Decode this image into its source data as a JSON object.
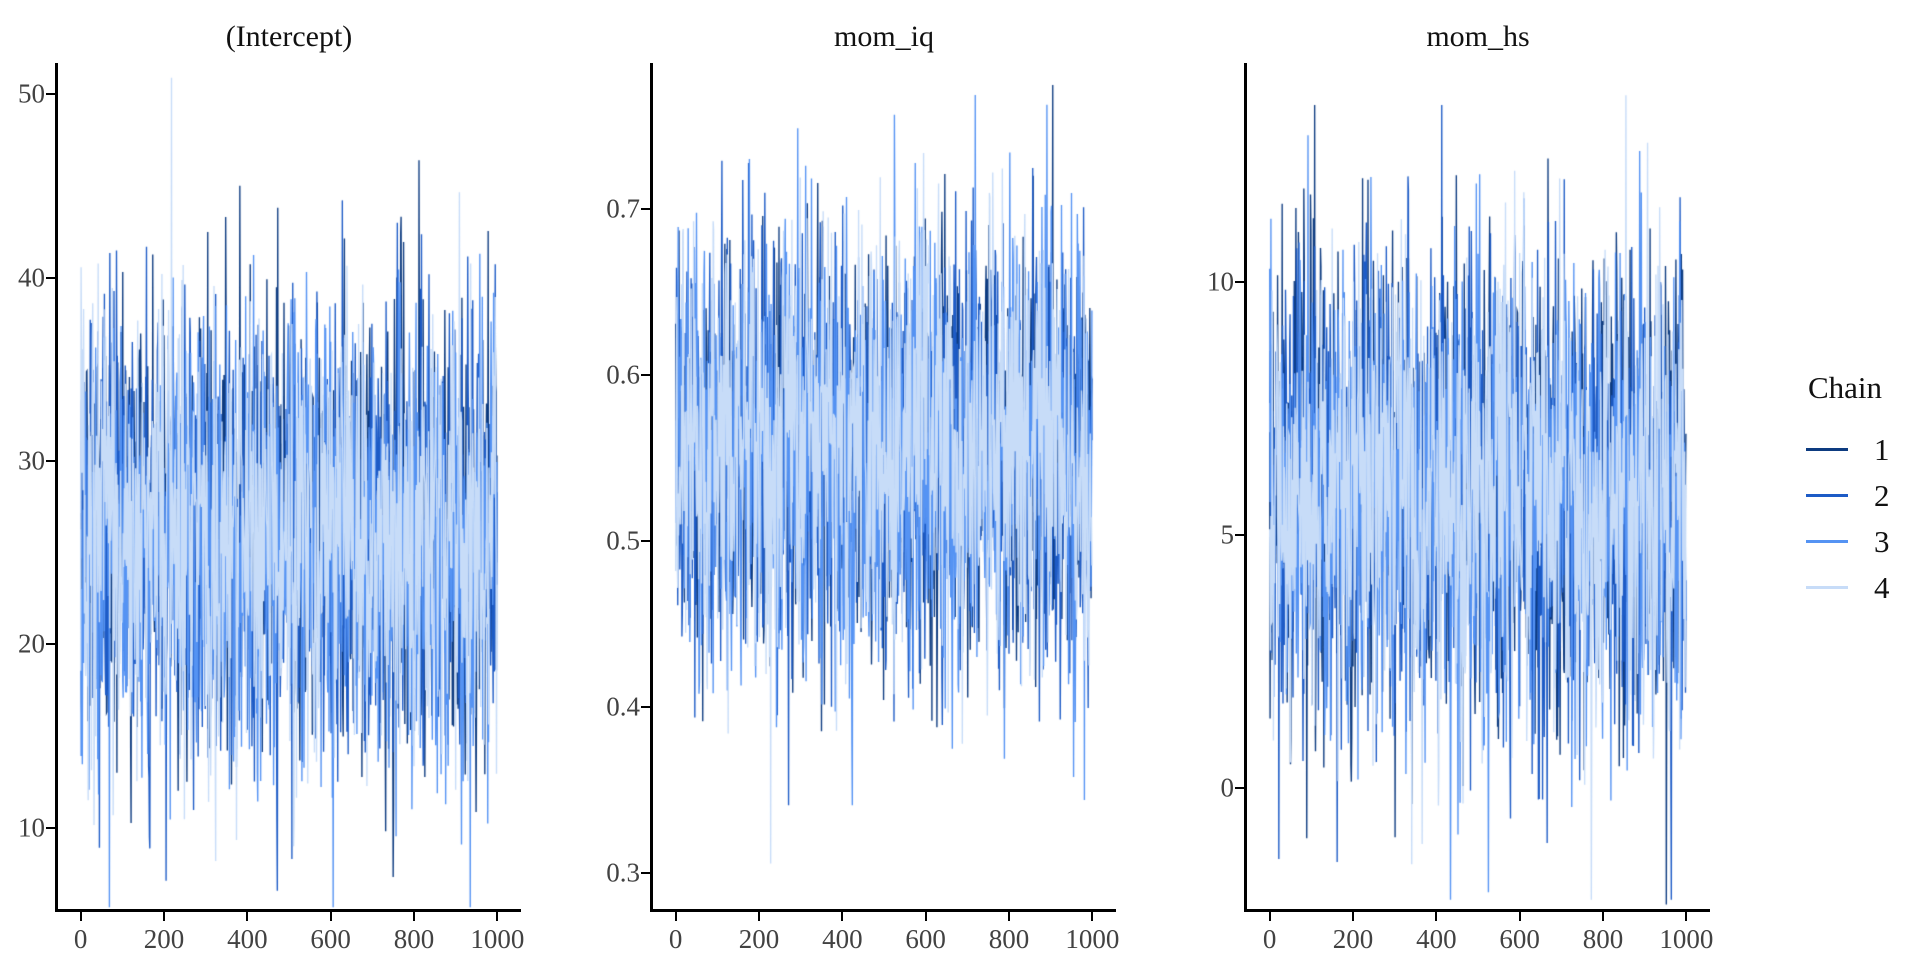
{
  "legend": {
    "title": "Chain",
    "items": [
      {
        "label": "1",
        "color": "#0d3b80"
      },
      {
        "label": "2",
        "color": "#1d5bc6"
      },
      {
        "label": "3",
        "color": "#5593f3"
      },
      {
        "label": "4",
        "color": "#c7dcf8"
      }
    ]
  },
  "chart_data": [
    {
      "type": "line",
      "subtype": "mcmc_trace",
      "title": "(Intercept)",
      "xlabel": "",
      "ylabel": "",
      "x_ticks": [
        {
          "label": "0",
          "value": 0
        },
        {
          "label": "200",
          "value": 200
        },
        {
          "label": "400",
          "value": 400
        },
        {
          "label": "600",
          "value": 600
        },
        {
          "label": "800",
          "value": 800
        },
        {
          "label": "1000",
          "value": 1000
        }
      ],
      "y_ticks": [
        {
          "label": "10",
          "value": 10
        },
        {
          "label": "20",
          "value": 20
        },
        {
          "label": "30",
          "value": 30
        },
        {
          "label": "40",
          "value": 40
        },
        {
          "label": "50",
          "value": 50
        }
      ],
      "xlim": [
        -52,
        1052
      ],
      "ylim": [
        5.5,
        51.6
      ],
      "iterations": 1000,
      "n_chains": 4,
      "grid": false,
      "legend_position": "right",
      "observed_range": [
        7.3,
        50.9
      ],
      "series": [
        {
          "name": "chain 1",
          "color": "#0d3b80",
          "mean": 26.0,
          "sd": 5.9
        },
        {
          "name": "chain 2",
          "color": "#1d5bc6",
          "mean": 26.0,
          "sd": 5.9
        },
        {
          "name": "chain 3",
          "color": "#5593f3",
          "mean": 26.0,
          "sd": 5.9
        },
        {
          "name": "chain 4",
          "color": "#c7dcf8",
          "mean": 26.0,
          "sd": 5.9
        }
      ],
      "extremes": [
        {
          "chain": 4,
          "iteration": 218,
          "value": 50.9
        },
        {
          "chain": 1,
          "iteration": 812,
          "value": 46.4
        },
        {
          "chain": 2,
          "iteration": 760,
          "value": 43.0
        },
        {
          "chain": 1,
          "iteration": 750,
          "value": 7.3
        },
        {
          "chain": 2,
          "iteration": 45,
          "value": 8.9
        },
        {
          "chain": 3,
          "iteration": 958,
          "value": 41.3
        }
      ]
    },
    {
      "type": "line",
      "subtype": "mcmc_trace",
      "title": "mom_iq",
      "xlabel": "",
      "ylabel": "",
      "x_ticks": [
        {
          "label": "0",
          "value": 0
        },
        {
          "label": "200",
          "value": 200
        },
        {
          "label": "400",
          "value": 400
        },
        {
          "label": "600",
          "value": 600
        },
        {
          "label": "800",
          "value": 800
        },
        {
          "label": "1000",
          "value": 1000
        }
      ],
      "y_ticks": [
        {
          "label": "0.3",
          "value": 0.3
        },
        {
          "label": "0.4",
          "value": 0.4
        },
        {
          "label": "0.5",
          "value": 0.5
        },
        {
          "label": "0.6",
          "value": 0.6
        },
        {
          "label": "0.7",
          "value": 0.7
        }
      ],
      "xlim": [
        -52,
        1052
      ],
      "ylim": [
        0.278,
        0.787
      ],
      "iterations": 1000,
      "n_chains": 4,
      "grid": false,
      "legend_position": "right",
      "observed_range": [
        0.306,
        0.775
      ],
      "series": [
        {
          "name": "chain 1",
          "color": "#0d3b80",
          "mean": 0.555,
          "sd": 0.062
        },
        {
          "name": "chain 2",
          "color": "#1d5bc6",
          "mean": 0.555,
          "sd": 0.062
        },
        {
          "name": "chain 3",
          "color": "#5593f3",
          "mean": 0.555,
          "sd": 0.062
        },
        {
          "name": "chain 4",
          "color": "#c7dcf8",
          "mean": 0.555,
          "sd": 0.062
        }
      ],
      "extremes": [
        {
          "chain": 1,
          "iteration": 905,
          "value": 0.775
        },
        {
          "chain": 2,
          "iteration": 175,
          "value": 0.728
        },
        {
          "chain": 4,
          "iteration": 228,
          "value": 0.306
        },
        {
          "chain": 3,
          "iteration": 525,
          "value": 0.757
        },
        {
          "chain": 1,
          "iteration": 615,
          "value": 0.392
        }
      ]
    },
    {
      "type": "line",
      "subtype": "mcmc_trace",
      "title": "mom_hs",
      "xlabel": "",
      "ylabel": "",
      "x_ticks": [
        {
          "label": "0",
          "value": 0
        },
        {
          "label": "200",
          "value": 200
        },
        {
          "label": "400",
          "value": 400
        },
        {
          "label": "600",
          "value": 600
        },
        {
          "label": "800",
          "value": 800
        },
        {
          "label": "1000",
          "value": 1000
        }
      ],
      "y_ticks": [
        {
          "label": "0",
          "value": 0
        },
        {
          "label": "5",
          "value": 5
        },
        {
          "label": "10",
          "value": 10
        }
      ],
      "xlim": [
        -52,
        1052
      ],
      "ylim": [
        -2.41,
        14.29
      ],
      "iterations": 1000,
      "n_chains": 4,
      "grid": false,
      "legend_position": "right",
      "observed_range": [
        -2.3,
        13.5
      ],
      "series": [
        {
          "name": "chain 1",
          "color": "#0d3b80",
          "mean": 5.9,
          "sd": 2.35
        },
        {
          "name": "chain 2",
          "color": "#1d5bc6",
          "mean": 5.9,
          "sd": 2.35
        },
        {
          "name": "chain 3",
          "color": "#5593f3",
          "mean": 5.9,
          "sd": 2.35
        },
        {
          "name": "chain 4",
          "color": "#c7dcf8",
          "mean": 5.9,
          "sd": 2.35
        }
      ],
      "extremes": [
        {
          "chain": 1,
          "iteration": 108,
          "value": 13.5
        },
        {
          "chain": 3,
          "iteration": 92,
          "value": 12.9
        },
        {
          "chain": 1,
          "iteration": 952,
          "value": -2.3
        },
        {
          "chain": 2,
          "iteration": 22,
          "value": -1.4
        },
        {
          "chain": 4,
          "iteration": 588,
          "value": 12.2
        }
      ]
    }
  ]
}
